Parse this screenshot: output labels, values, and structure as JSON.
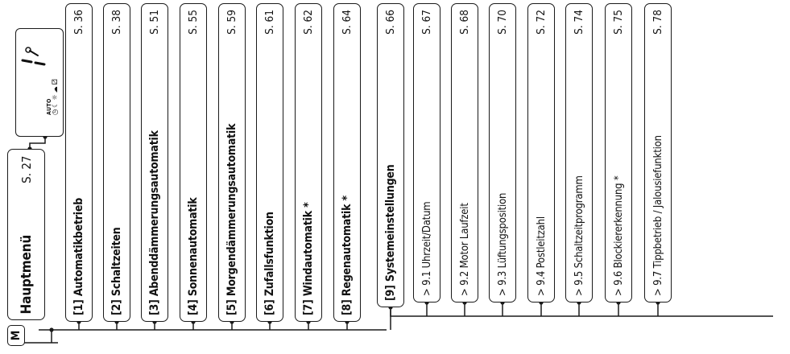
{
  "main_menu": {
    "key_label": "M",
    "title": "Hauptmenü",
    "page": "S. 27",
    "display": {
      "mode_label": "AUTO",
      "symbols": [
        "clock-icon",
        "moon-icon",
        "sun-icon",
        "dusk-icon",
        "dice-icon",
        "hand-icon"
      ]
    }
  },
  "menu_items": [
    {
      "label": "[1] Automatikbetrieb",
      "page": "S. 36"
    },
    {
      "label": "[2] Schaltzeiten",
      "page": "S. 38"
    },
    {
      "label": "[3] Abenddämmerungsautomatik",
      "page": "S. 51"
    },
    {
      "label": "[4] Sonnenautomatik",
      "page": "S. 55"
    },
    {
      "label": "[5] Morgendämmerungsautomatik",
      "page": "S. 59"
    },
    {
      "label": "[6] Zufallsfunktion",
      "page": "S. 61"
    },
    {
      "label": "[7] Windautomatik *",
      "page": "S. 62"
    },
    {
      "label": "[8] Regenautomatik *",
      "page": "S. 64"
    },
    {
      "label": "[9] Systemeinstellungen",
      "page": "S. 66"
    }
  ],
  "sub_items": [
    {
      "label": "> 9.1 Uhrzeit/Datum",
      "page": "S. 67"
    },
    {
      "label": "> 9.2 Motor Laufzeit",
      "page": "S. 68"
    },
    {
      "label": "> 9.3 Lüftungsposition",
      "page": "S. 70"
    },
    {
      "label": "> 9.4 Postleitzahl",
      "page": "S. 72"
    },
    {
      "label": "> 9.5 Schaltzeitprogramm",
      "page": "S. 74"
    },
    {
      "label": "> 9.6 Blockiererkennung *",
      "page": "S. 75"
    },
    {
      "label": "> 9.7 Tippbetrieb / Jalousiefunktion",
      "page": "S. 78"
    }
  ]
}
